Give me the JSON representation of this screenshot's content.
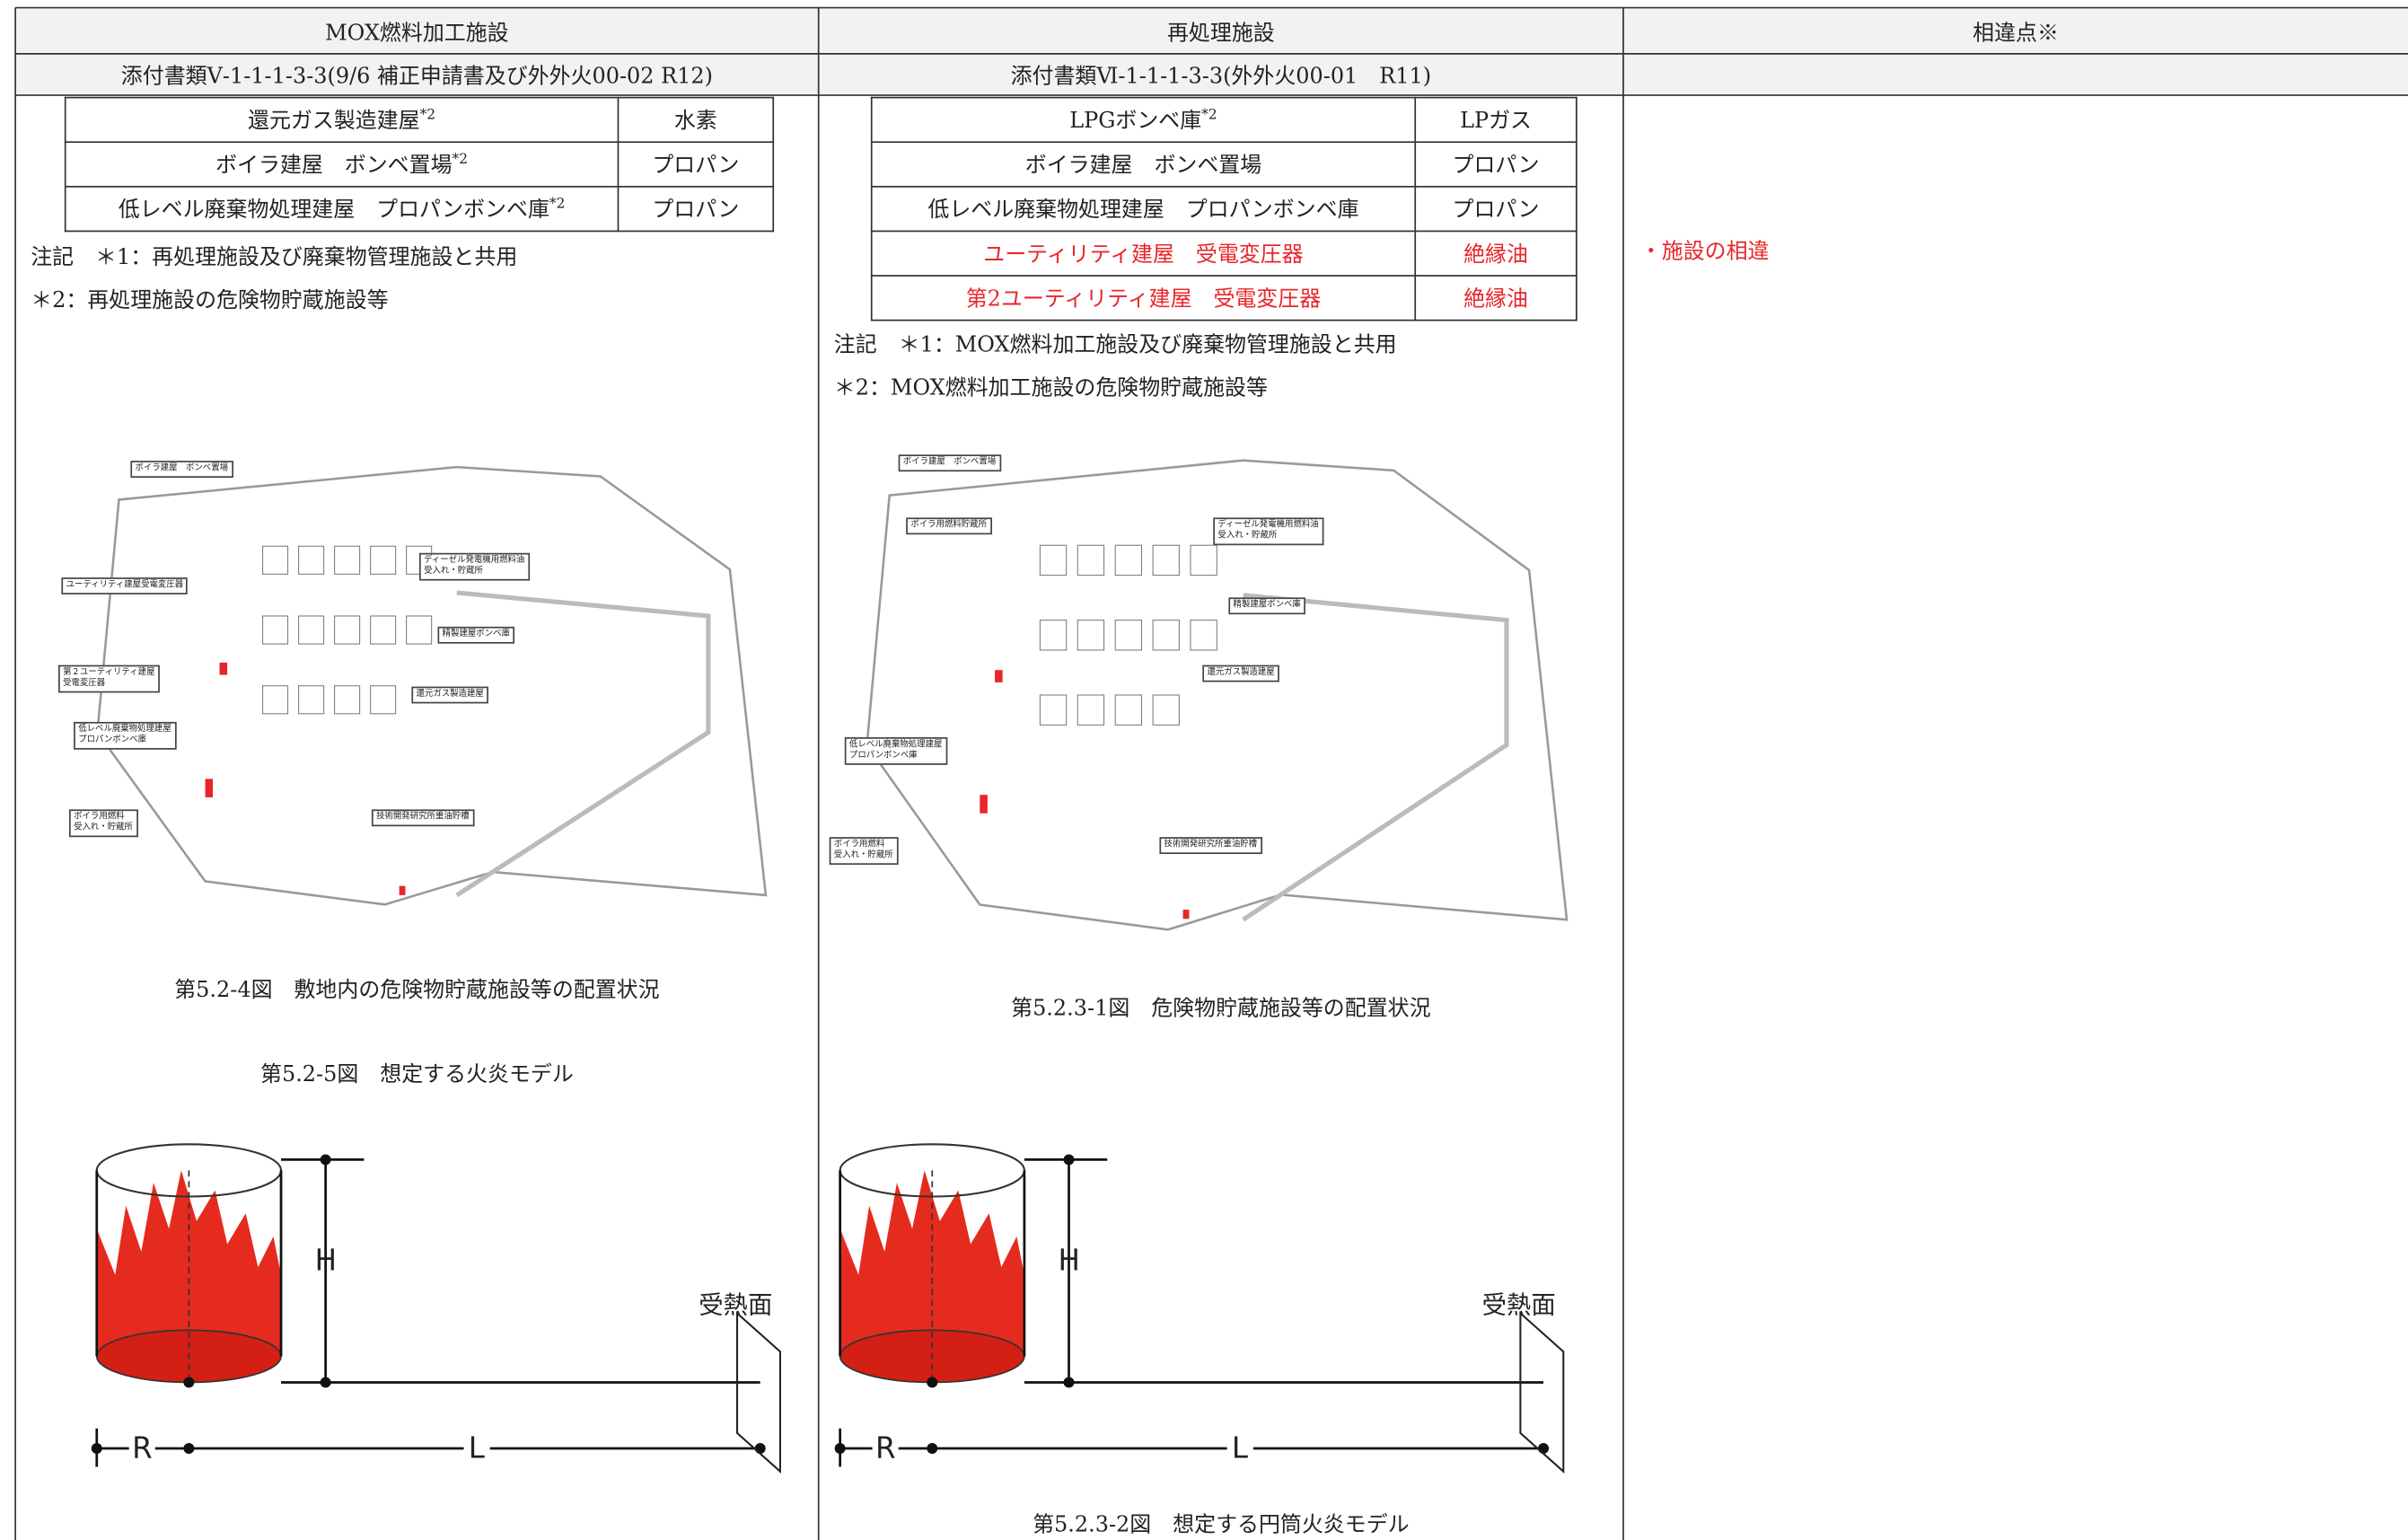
{
  "header": {
    "columns": [
      {
        "title": "MOX燃料加工施設",
        "document": "添付書類Ⅴ-1-1-1-3-3(9/6 補正申請書及び外外火00-02 R12)"
      },
      {
        "title": "再処理施設",
        "document": "添付書類Ⅵ-1-1-1-3-3(外外火00-01　R11)"
      },
      {
        "title": "相違点※"
      }
    ]
  },
  "mox": {
    "table": {
      "rows": [
        {
          "building": "還元ガス製造建屋",
          "ref": "*2",
          "substance": "水素"
        },
        {
          "building": "ボイラ建屋　ボンベ置場",
          "ref": "*2",
          "substance": "プロパン"
        },
        {
          "building": "低レベル廃棄物処理建屋　プロパンボンベ庫",
          "ref": "*2",
          "substance": "プロパン"
        }
      ]
    },
    "notes": [
      "注記　＊1：再処理施設及び廃棄物管理施設と共用",
      "＊2：再処理施設の危険物貯蔵施設等"
    ],
    "map": {
      "labels": [
        [
          "ボイラ建屋　ボンベ置場"
        ],
        [
          "ディーゼル発電機用燃料油",
          "受入れ・貯蔵所"
        ],
        [
          "ユーティリティ建屋受電変圧器"
        ],
        [
          "精製建屋ボンベ庫"
        ],
        [
          "還元ガス製造建屋"
        ],
        [
          "第２ユーティリティ建屋",
          "受電変圧器"
        ],
        [
          "低レベル廃棄物処理建屋",
          "プロパンボンベ庫"
        ],
        [
          "ボイラ用燃料",
          "受入れ・貯蔵所"
        ],
        [
          "技術開発研究所重油貯槽"
        ]
      ]
    },
    "captions": [
      "第5.2-4図　敷地内の危険物貯蔵施設等の配置状況",
      "第5.2-5図　想定する火炎モデル"
    ],
    "flame_model": {
      "height": "H",
      "radius": "R",
      "distance": "L",
      "receiver": "受熱面"
    }
  },
  "reprocessing": {
    "table": {
      "rows": [
        {
          "building": "LPGボンベ庫",
          "ref": "*2",
          "substance": "LPガス"
        },
        {
          "building": "ボイラ建屋　ボンベ置場",
          "substance": "プロパン"
        },
        {
          "building": "低レベル廃棄物処理建屋　プロパンボンベ庫",
          "substance": "プロパン"
        },
        {
          "building": "ユーティリティ建屋　受電変圧器",
          "substance": "絶縁油",
          "color": "#e8262a"
        },
        {
          "building": "第2ユーティリティ建屋　受電変圧器",
          "substance": "絶縁油",
          "color": "#e8262a"
        }
      ]
    },
    "notes": [
      "注記　＊1：MOX燃料加工施設及び廃棄物管理施設と共用",
      "＊2：MOX燃料加工施設の危険物貯蔵施設等"
    ],
    "map": {
      "labels": [
        [
          "ボイラ建屋　ボンベ置場"
        ],
        [
          "ボイラ用燃料貯蔵所"
        ],
        [
          "ディーゼル発電機用燃料油",
          "受入れ・貯蔵所"
        ],
        [
          "精製建屋ボンベ庫"
        ],
        [
          "還元ガス製造建屋"
        ],
        [
          "低レベル廃棄物処理建屋",
          "プロパンボンベ庫"
        ],
        [
          "ボイラ用燃料",
          "受入れ・貯蔵所"
        ],
        [
          "技術開発研究所重油貯槽"
        ]
      ]
    },
    "captions": [
      "第5.2.3-1図　危険物貯蔵施設等の配置状況",
      "第5.2.3-2図　想定する円筒火炎モデル"
    ],
    "flame_model": {
      "height": "H",
      "radius": "R",
      "distance": "L",
      "receiver": "受熱面"
    }
  },
  "differences": {
    "items": [
      {
        "text": "・施設の相違",
        "color": "#e8262a"
      }
    ]
  }
}
